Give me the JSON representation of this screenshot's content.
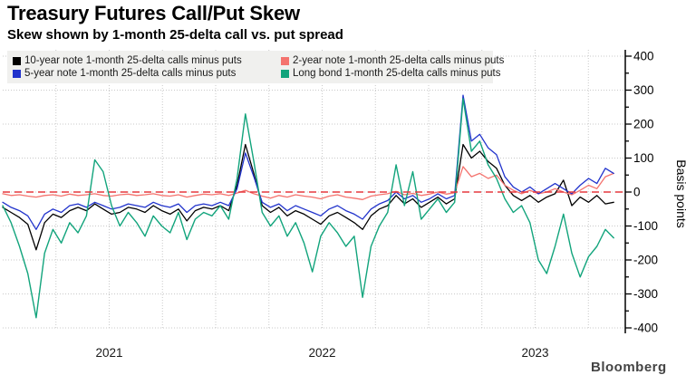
{
  "header": {
    "title": "Treasury Futures Call/Put Skew",
    "subtitle": "Skew shown by 1-month 25-delta call vs. put spread"
  },
  "legend": {
    "items": [
      {
        "label": "10-year note 1-month 25-delta calls minus puts",
        "color": "#000000"
      },
      {
        "label": "2-year note 1-month 25-delta calls minus puts",
        "color": "#f4736e"
      },
      {
        "label": "5-year note 1-month 25-delta calls minus puts",
        "color": "#2133cc"
      },
      {
        "label": "Long bond 1-month 25-delta calls minus puts",
        "color": "#12a47c"
      }
    ]
  },
  "axes": {
    "y": {
      "label": "Basis points",
      "ticks": [
        400,
        300,
        200,
        100,
        0,
        -100,
        -200,
        -300,
        -400
      ],
      "minor_step": 50
    },
    "x": {
      "labels": [
        "2021",
        "2022",
        "2023"
      ]
    }
  },
  "colors": {
    "zero_line": "#e5383e",
    "grid": "#c9c9c9",
    "axis": "#000000"
  },
  "watermark": "Bloomberg",
  "chart_data": {
    "type": "line",
    "title": "Treasury Futures Call/Put Skew",
    "subtitle": "Skew shown by 1-month 25-delta call vs. put spread",
    "xlabel": "",
    "ylabel": "Basis points",
    "ylim": [
      -400,
      400
    ],
    "xlim": [
      2021.0,
      2023.92
    ],
    "grid": "dotted, horizontal every 100 bp, vertical quarterly",
    "legend_position": "top-left inside plot",
    "zero_reference_line": 0,
    "x_start": 2021.0,
    "x_step": 0.0393,
    "series": [
      {
        "name": "10-year note 1-month 25-delta calls minus puts",
        "color": "#000000",
        "values": [
          -45,
          -60,
          -75,
          -95,
          -170,
          -90,
          -65,
          -75,
          -55,
          -45,
          -55,
          -35,
          -50,
          -65,
          -60,
          -45,
          -50,
          -60,
          -40,
          -55,
          -65,
          -50,
          -85,
          -55,
          -45,
          -50,
          -40,
          -55,
          20,
          140,
          55,
          -40,
          -60,
          -45,
          -70,
          -55,
          -65,
          -80,
          -95,
          -70,
          -60,
          -75,
          -90,
          -110,
          -70,
          -50,
          -40,
          -10,
          -35,
          -20,
          -45,
          -30,
          -15,
          -35,
          -20,
          140,
          100,
          120,
          90,
          70,
          20,
          -10,
          -25,
          -10,
          -30,
          -15,
          -5,
          35,
          -40,
          -15,
          -30,
          -10,
          -35,
          -30
        ]
      },
      {
        "name": "2-year note 1-month 25-delta calls minus puts",
        "color": "#f4736e",
        "values": [
          -5,
          -10,
          -8,
          -12,
          -15,
          -10,
          -8,
          -12,
          -6,
          -10,
          -8,
          -5,
          -10,
          -12,
          -8,
          -6,
          -10,
          -8,
          -5,
          -10,
          -12,
          -8,
          -15,
          -10,
          -6,
          -8,
          -5,
          -10,
          -3,
          5,
          -5,
          -12,
          -18,
          -10,
          -15,
          -8,
          -12,
          -15,
          -20,
          -12,
          -8,
          -15,
          -18,
          -22,
          -12,
          -8,
          -5,
          2,
          -8,
          -4,
          -10,
          -6,
          0,
          -6,
          -2,
          75,
          45,
          55,
          40,
          50,
          20,
          5,
          -5,
          5,
          -5,
          0,
          10,
          0,
          -8,
          5,
          20,
          10,
          45,
          55
        ]
      },
      {
        "name": "5-year note 1-month 25-delta calls minus puts",
        "color": "#2133cc",
        "values": [
          -30,
          -45,
          -55,
          -70,
          -110,
          -65,
          -50,
          -60,
          -40,
          -35,
          -45,
          -30,
          -40,
          -50,
          -45,
          -35,
          -40,
          -45,
          -30,
          -40,
          -45,
          -35,
          -60,
          -40,
          -35,
          -40,
          -30,
          -40,
          10,
          115,
          45,
          -30,
          -45,
          -35,
          -55,
          -40,
          -50,
          -60,
          -70,
          -50,
          -40,
          -55,
          -65,
          -80,
          -50,
          -35,
          -25,
          0,
          -20,
          -10,
          -30,
          -20,
          -5,
          -20,
          -10,
          285,
          150,
          170,
          130,
          110,
          45,
          15,
          0,
          15,
          -5,
          10,
          25,
          10,
          -5,
          20,
          40,
          25,
          70,
          55
        ]
      },
      {
        "name": "Long bond 1-month 25-delta calls minus puts",
        "color": "#12a47c",
        "values": [
          -40,
          -90,
          -160,
          -240,
          -370,
          -180,
          -110,
          -150,
          -90,
          -120,
          -70,
          95,
          60,
          -40,
          -100,
          -60,
          -90,
          -130,
          -70,
          -100,
          -120,
          -60,
          -140,
          -80,
          -60,
          -70,
          -40,
          -80,
          40,
          230,
          90,
          -60,
          -100,
          -70,
          -130,
          -90,
          -150,
          -235,
          -130,
          -90,
          -120,
          -160,
          -130,
          -310,
          -160,
          -100,
          -60,
          80,
          -40,
          60,
          -80,
          -50,
          -20,
          -60,
          -30,
          275,
          120,
          150,
          80,
          40,
          -20,
          -60,
          -40,
          -90,
          -200,
          -240,
          -160,
          -65,
          -180,
          -250,
          -190,
          -160,
          -110,
          -135
        ]
      }
    ]
  }
}
